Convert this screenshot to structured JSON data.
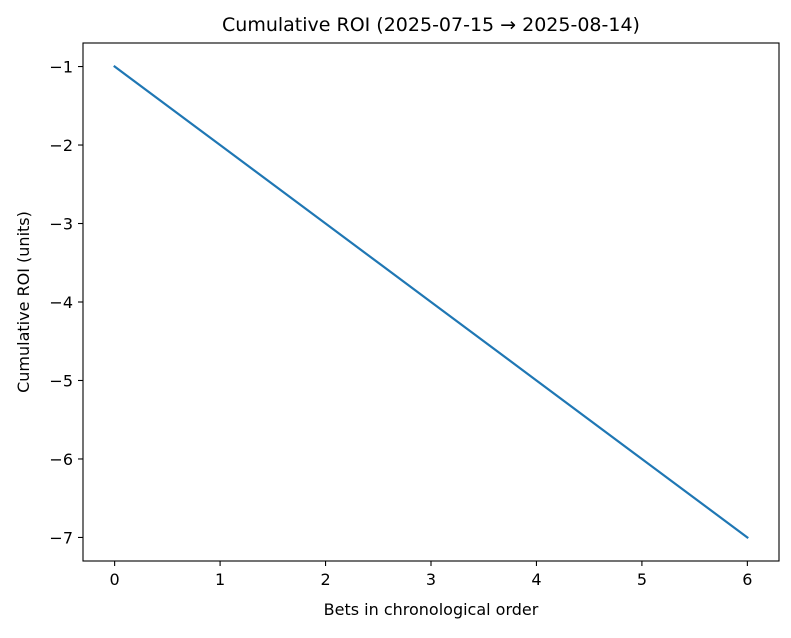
{
  "chart_data": {
    "type": "line",
    "title": "Cumulative ROI (2025-07-15 → 2025-08-14)",
    "xlabel": "Bets in chronological order",
    "ylabel": "Cumulative ROI (units)",
    "x": [
      0,
      1,
      2,
      3,
      4,
      5,
      6
    ],
    "series": [
      {
        "name": "Cumulative ROI",
        "color": "#1f77b4",
        "values": [
          -1,
          -2,
          -3,
          -4,
          -5,
          -6,
          -7
        ]
      }
    ],
    "xlim": [
      -0.3,
      6.3
    ],
    "ylim": [
      -7.3,
      -0.7
    ],
    "xticks": [
      0,
      1,
      2,
      3,
      4,
      5,
      6
    ],
    "xtick_labels": [
      "0",
      "1",
      "2",
      "3",
      "4",
      "5",
      "6"
    ],
    "yticks": [
      -1,
      -2,
      -3,
      -4,
      -5,
      -6,
      -7
    ],
    "ytick_labels": [
      "−1",
      "−2",
      "−3",
      "−4",
      "−5",
      "−6",
      "−7"
    ],
    "grid": false
  }
}
